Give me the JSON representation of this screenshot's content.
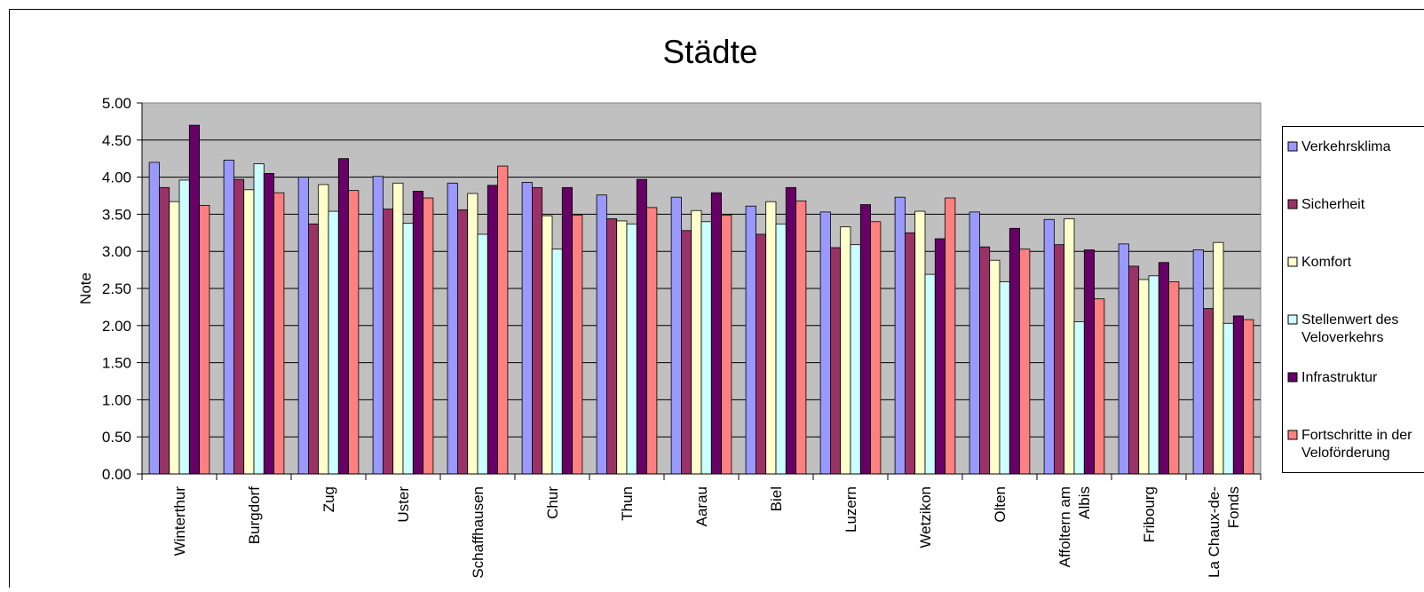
{
  "chart_data": {
    "type": "bar",
    "title": "Städte",
    "xlabel": "",
    "ylabel": "Note",
    "ylim": [
      0,
      5
    ],
    "yticks": [
      "0.00",
      "0.50",
      "1.00",
      "1.50",
      "2.00",
      "2.50",
      "3.00",
      "3.50",
      "4.00",
      "4.50",
      "5.00"
    ],
    "grid": true,
    "legend_position": "right",
    "categories": [
      "Winterthur",
      "Burgdorf",
      "Zug",
      "Uster",
      "Schaffhausen",
      "Chur",
      "Thun",
      "Aarau",
      "Biel",
      "Luzern",
      "Wetzikon",
      "Olten",
      "Affoltern am Albis",
      "Fribourg",
      "La Chaux-de-Fonds"
    ],
    "category_labels": [
      [
        "Winterthur"
      ],
      [
        "Burgdorf"
      ],
      [
        "Zug"
      ],
      [
        "Uster"
      ],
      [
        "Schaffhausen"
      ],
      [
        "Chur"
      ],
      [
        "Thun"
      ],
      [
        "Aarau"
      ],
      [
        "Biel"
      ],
      [
        "Luzern"
      ],
      [
        "Wetzikon"
      ],
      [
        "Olten"
      ],
      [
        "Affoltern am",
        "Albis"
      ],
      [
        "Fribourg"
      ],
      [
        "La Chaux-de-",
        "Fonds"
      ]
    ],
    "series": [
      {
        "name": "Verkehrsklima",
        "label_lines": [
          "Verkehrsklima"
        ],
        "color": "#9999FF",
        "values": [
          4.2,
          4.23,
          4.0,
          4.01,
          3.92,
          3.93,
          3.76,
          3.73,
          3.61,
          3.53,
          3.73,
          3.53,
          3.43,
          3.1,
          3.02
        ]
      },
      {
        "name": "Sicherheit",
        "label_lines": [
          "Sicherheit"
        ],
        "color": "#993366",
        "values": [
          3.86,
          3.97,
          3.37,
          3.57,
          3.56,
          3.86,
          3.44,
          3.28,
          3.23,
          3.05,
          3.25,
          3.06,
          3.09,
          2.8,
          2.23
        ]
      },
      {
        "name": "Komfort",
        "label_lines": [
          "Komfort"
        ],
        "color": "#FFFFCC",
        "values": [
          3.67,
          3.83,
          3.9,
          3.92,
          3.78,
          3.48,
          3.41,
          3.55,
          3.67,
          3.33,
          3.54,
          2.88,
          3.44,
          2.62,
          3.12
        ]
      },
      {
        "name": "Stellenwert des Veloverkehrs",
        "label_lines": [
          "Stellenwert des",
          "Veloverkehrs"
        ],
        "color": "#CCFFFF",
        "values": [
          3.96,
          4.18,
          3.54,
          3.38,
          3.23,
          3.03,
          3.37,
          3.4,
          3.37,
          3.09,
          2.69,
          2.59,
          2.05,
          2.67,
          2.03
        ]
      },
      {
        "name": "Infrastruktur",
        "label_lines": [
          "Infrastruktur"
        ],
        "color": "#660066",
        "values": [
          4.7,
          4.05,
          4.25,
          3.81,
          3.89,
          3.86,
          3.97,
          3.79,
          3.86,
          3.63,
          3.17,
          3.31,
          3.02,
          2.85,
          2.13
        ]
      },
      {
        "name": "Fortschritte in der Veloförderung",
        "label_lines": [
          "Fortschritte in der",
          "Veloförderung"
        ],
        "color": "#FF8080",
        "values": [
          3.62,
          3.79,
          3.82,
          3.72,
          4.15,
          3.49,
          3.59,
          3.49,
          3.68,
          3.4,
          3.72,
          3.03,
          2.36,
          2.59,
          2.08
        ]
      }
    ]
  }
}
